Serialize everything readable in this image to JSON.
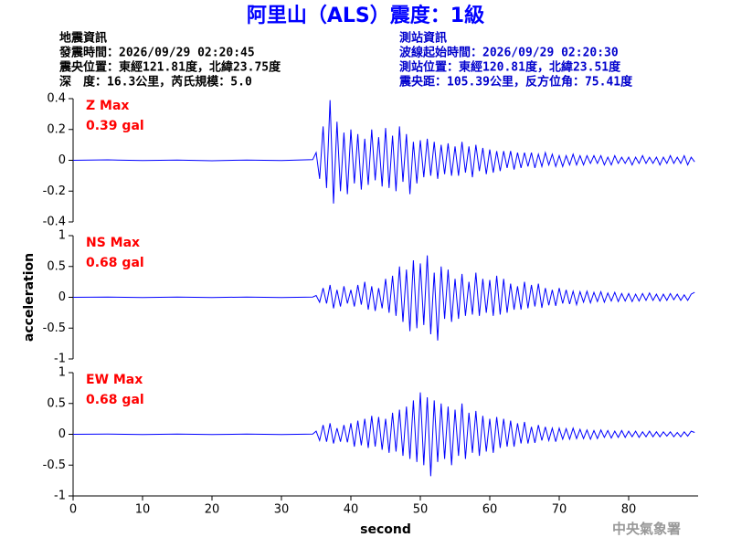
{
  "title": "阿里山（ALS）震度：1級",
  "header": {
    "left": [
      "地震資訊",
      "發震時間：2026/09/29 02:20:45",
      "震央位置：東經121.81度，北緯23.75度",
      "深　度：16.3公里，芮氏規模：5.0"
    ],
    "right": [
      "測站資訊",
      "波線起始時間：2026/09/29 02:20:30",
      "測站位置：東經120.81度，北緯23.51度",
      "震央距：105.39公里，反方位角：75.41度"
    ]
  },
  "footer": "中央氣象署",
  "chart_data": [
    {
      "type": "line",
      "annotation": [
        "Z Max",
        "0.39 gal"
      ],
      "color": "#0000ff",
      "xlim": [
        0,
        90
      ],
      "ylim": [
        -0.4,
        0.4
      ],
      "yticks": [
        0.4,
        0.2,
        0,
        -0.2,
        -0.4
      ],
      "x": [
        0,
        5,
        10,
        15,
        20,
        25,
        30,
        34.5,
        35,
        35.5,
        36,
        36.5,
        37,
        37.5,
        38,
        38.5,
        39,
        39.5,
        40,
        40.5,
        41,
        41.5,
        42,
        42.5,
        43,
        43.5,
        44,
        44.5,
        45,
        45.5,
        46,
        46.5,
        47,
        47.5,
        48,
        48.5,
        49,
        49.5,
        50,
        50.5,
        51,
        51.5,
        52,
        52.5,
        53,
        53.5,
        54,
        54.5,
        55,
        55.5,
        56,
        56.5,
        57,
        57.5,
        58,
        58.5,
        59,
        59.5,
        60,
        60.5,
        61,
        61.5,
        62,
        62.5,
        63,
        63.5,
        64,
        64.5,
        65,
        65.5,
        66,
        66.5,
        67,
        67.5,
        68,
        68.5,
        69,
        69.5,
        70,
        70.5,
        71,
        71.5,
        72,
        72.5,
        73,
        73.5,
        74,
        74.5,
        75,
        75.5,
        76,
        76.5,
        77,
        77.5,
        78,
        78.5,
        79,
        79.5,
        80,
        80.5,
        81,
        81.5,
        82,
        82.5,
        83,
        83.5,
        84,
        84.5,
        85,
        85.5,
        86,
        86.5,
        87,
        87.5,
        88,
        88.5,
        89,
        89.5
      ],
      "values": [
        0,
        0.003,
        -0.002,
        0.002,
        -0.003,
        0.002,
        -0.002,
        0.004,
        0.05,
        -0.12,
        0.22,
        -0.18,
        0.39,
        -0.28,
        0.25,
        -0.2,
        0.18,
        -0.22,
        0.2,
        -0.15,
        0.17,
        -0.19,
        0.14,
        -0.16,
        0.2,
        -0.13,
        0.15,
        -0.17,
        0.21,
        -0.18,
        0.16,
        -0.2,
        0.22,
        -0.14,
        0.17,
        -0.22,
        0.12,
        -0.15,
        0.13,
        -0.11,
        0.14,
        -0.1,
        0.12,
        -0.12,
        0.1,
        -0.09,
        0.11,
        -0.1,
        0.09,
        -0.1,
        0.12,
        -0.08,
        0.09,
        -0.11,
        0.1,
        -0.07,
        0.08,
        -0.09,
        0.07,
        -0.08,
        0.06,
        -0.07,
        0.06,
        -0.05,
        0.06,
        -0.06,
        0.05,
        -0.05,
        0.05,
        -0.04,
        0.05,
        -0.05,
        0.04,
        -0.04,
        0.05,
        -0.03,
        0.04,
        -0.04,
        0.03,
        -0.04,
        0.03,
        -0.03,
        0.04,
        -0.03,
        0.03,
        -0.03,
        0.03,
        -0.02,
        0.03,
        -0.02,
        0.03,
        -0.03,
        0.02,
        -0.03,
        0.03,
        -0.02,
        0.02,
        -0.02,
        0.02,
        -0.03,
        0.02,
        -0.02,
        0.03,
        -0.02,
        0.02,
        -0.02,
        0.02,
        -0.03,
        0.02,
        -0.02,
        0.03,
        -0.02,
        0.02,
        -0.02,
        0.03,
        -0.03,
        0.02,
        -0.01
      ]
    },
    {
      "type": "line",
      "annotation": [
        "NS Max",
        "0.68 gal"
      ],
      "color": "#0000ff",
      "xlim": [
        0,
        90
      ],
      "ylim": [
        -1,
        1
      ],
      "yticks": [
        1,
        0.5,
        0,
        -0.5,
        -1
      ],
      "ylabel": "acceleration",
      "x": [
        0,
        5,
        10,
        15,
        20,
        25,
        30,
        34.5,
        35,
        35.5,
        36,
        36.5,
        37,
        37.5,
        38,
        38.5,
        39,
        39.5,
        40,
        40.5,
        41,
        41.5,
        42,
        42.5,
        43,
        43.5,
        44,
        44.5,
        45,
        45.5,
        46,
        46.5,
        47,
        47.5,
        48,
        48.5,
        49,
        49.5,
        50,
        50.5,
        51,
        51.5,
        52,
        52.5,
        53,
        53.5,
        54,
        54.5,
        55,
        55.5,
        56,
        56.5,
        57,
        57.5,
        58,
        58.5,
        59,
        59.5,
        60,
        60.5,
        61,
        61.5,
        62,
        62.5,
        63,
        63.5,
        64,
        64.5,
        65,
        65.5,
        66,
        66.5,
        67,
        67.5,
        68,
        68.5,
        69,
        69.5,
        70,
        70.5,
        71,
        71.5,
        72,
        72.5,
        73,
        73.5,
        74,
        74.5,
        75,
        75.5,
        76,
        76.5,
        77,
        77.5,
        78,
        78.5,
        79,
        79.5,
        80,
        80.5,
        81,
        81.5,
        82,
        82.5,
        83,
        83.5,
        84,
        84.5,
        85,
        85.5,
        86,
        86.5,
        87,
        87.5,
        88,
        88.5,
        89,
        89.5
      ],
      "values": [
        0,
        0.005,
        -0.004,
        0.004,
        -0.005,
        0.004,
        -0.003,
        0.005,
        0.03,
        -0.08,
        0.15,
        -0.1,
        0.2,
        -0.18,
        0.12,
        -0.15,
        0.18,
        -0.1,
        0.12,
        -0.15,
        0.2,
        -0.12,
        0.25,
        -0.2,
        0.18,
        -0.22,
        0.15,
        -0.18,
        0.3,
        -0.25,
        0.35,
        -0.3,
        0.5,
        -0.4,
        0.45,
        -0.55,
        0.6,
        -0.5,
        0.55,
        -0.45,
        0.68,
        -0.6,
        0.4,
        -0.7,
        0.5,
        -0.35,
        0.45,
        -0.4,
        0.3,
        -0.35,
        0.38,
        -0.3,
        0.25,
        -0.28,
        0.4,
        -0.3,
        0.3,
        -0.25,
        0.28,
        -0.3,
        0.35,
        -0.28,
        0.3,
        -0.25,
        0.22,
        -0.2,
        0.18,
        -0.2,
        0.25,
        -0.18,
        0.2,
        -0.15,
        0.22,
        -0.17,
        0.15,
        -0.13,
        0.12,
        -0.14,
        0.15,
        -0.1,
        0.12,
        -0.11,
        0.1,
        -0.12,
        0.09,
        -0.08,
        0.1,
        -0.09,
        0.08,
        -0.07,
        0.09,
        -0.08,
        0.07,
        -0.06,
        0.08,
        -0.07,
        0.06,
        -0.06,
        0.06,
        -0.07,
        0.05,
        -0.06,
        0.06,
        -0.05,
        0.07,
        -0.05,
        0.05,
        -0.06,
        0.05,
        -0.05,
        0.06,
        -0.04,
        0.05,
        -0.05,
        0.04,
        -0.05,
        0.05,
        0.08
      ]
    },
    {
      "type": "line",
      "annotation": [
        "EW Max",
        "0.68 gal"
      ],
      "color": "#0000ff",
      "xlim": [
        0,
        90
      ],
      "ylim": [
        -1,
        1
      ],
      "yticks": [
        1,
        0.5,
        0,
        -0.5,
        -1
      ],
      "xticks": [
        0,
        10,
        20,
        30,
        40,
        50,
        60,
        70,
        80
      ],
      "xlabel": "second",
      "x": [
        0,
        5,
        10,
        15,
        20,
        25,
        30,
        34.5,
        35,
        35.5,
        36,
        36.5,
        37,
        37.5,
        38,
        38.5,
        39,
        39.5,
        40,
        40.5,
        41,
        41.5,
        42,
        42.5,
        43,
        43.5,
        44,
        44.5,
        45,
        45.5,
        46,
        46.5,
        47,
        47.5,
        48,
        48.5,
        49,
        49.5,
        50,
        50.5,
        51,
        51.5,
        52,
        52.5,
        53,
        53.5,
        54,
        54.5,
        55,
        55.5,
        56,
        56.5,
        57,
        57.5,
        58,
        58.5,
        59,
        59.5,
        60,
        60.5,
        61,
        61.5,
        62,
        62.5,
        63,
        63.5,
        64,
        64.5,
        65,
        65.5,
        66,
        66.5,
        67,
        67.5,
        68,
        68.5,
        69,
        69.5,
        70,
        70.5,
        71,
        71.5,
        72,
        72.5,
        73,
        73.5,
        74,
        74.5,
        75,
        75.5,
        76,
        76.5,
        77,
        77.5,
        78,
        78.5,
        79,
        79.5,
        80,
        80.5,
        81,
        81.5,
        82,
        82.5,
        83,
        83.5,
        84,
        84.5,
        85,
        85.5,
        86,
        86.5,
        87,
        87.5,
        88,
        88.5,
        89,
        89.5
      ],
      "values": [
        0,
        0.003,
        -0.003,
        0.003,
        -0.004,
        0.003,
        -0.003,
        0.004,
        0.05,
        -0.1,
        0.15,
        -0.12,
        0.18,
        -0.15,
        0.1,
        -0.12,
        0.15,
        -0.13,
        0.18,
        -0.2,
        0.22,
        -0.18,
        0.25,
        -0.22,
        0.3,
        -0.2,
        0.28,
        -0.25,
        0.25,
        -0.3,
        0.35,
        -0.28,
        0.4,
        -0.35,
        0.45,
        -0.4,
        0.55,
        -0.45,
        0.68,
        -0.5,
        0.6,
        -0.68,
        0.55,
        -0.45,
        0.5,
        -0.4,
        0.45,
        -0.5,
        0.4,
        -0.35,
        0.5,
        -0.4,
        0.35,
        -0.3,
        0.38,
        -0.35,
        0.3,
        -0.28,
        0.25,
        -0.3,
        0.28,
        -0.22,
        0.25,
        -0.2,
        0.22,
        -0.2,
        0.18,
        -0.15,
        0.2,
        -0.15,
        0.12,
        -0.14,
        0.15,
        -0.1,
        0.12,
        -0.1,
        0.1,
        -0.12,
        0.1,
        -0.08,
        0.09,
        -0.08,
        0.1,
        -0.07,
        0.08,
        -0.07,
        0.07,
        -0.08,
        0.06,
        -0.07,
        0.07,
        -0.05,
        0.06,
        -0.06,
        0.05,
        -0.05,
        0.06,
        -0.05,
        0.05,
        -0.04,
        0.05,
        -0.05,
        0.04,
        -0.04,
        0.05,
        -0.04,
        0.04,
        -0.04,
        0.04,
        -0.03,
        0.04,
        -0.04,
        0.03,
        -0.04,
        0.04,
        -0.03,
        0.05,
        0.03
      ]
    }
  ]
}
